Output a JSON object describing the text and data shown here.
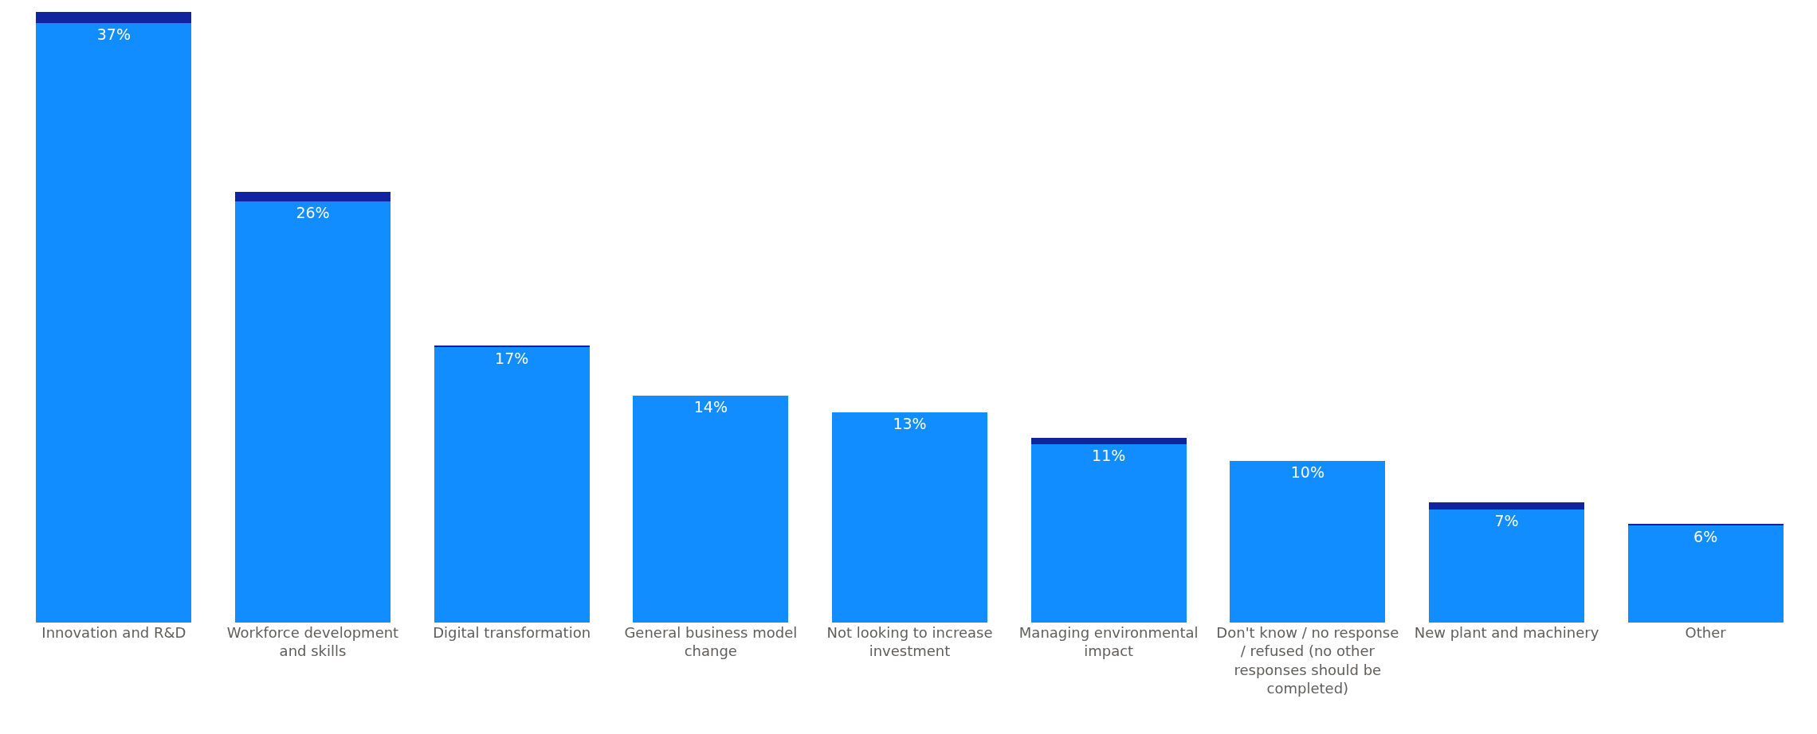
{
  "chart_data": {
    "type": "bar",
    "stacked": true,
    "categories": [
      "Innovation and R&D",
      "Workforce development and skills",
      "Digital transformation",
      "General business model change",
      "Not looking to increase investment",
      "Managing environmental impact",
      "Don't know / no response / refused (no other responses should be completed)",
      "New plant and machinery",
      "Other"
    ],
    "series": [
      {
        "color": "#118dff",
        "values": [
          37,
          26,
          17,
          14,
          13,
          11,
          10,
          7,
          6
        ],
        "value_labels": [
          "37%",
          "26%",
          "17%",
          "14%",
          "13%",
          "11%",
          "10%",
          "7%",
          "6%"
        ]
      },
      {
        "color": "#12239e",
        "values": [
          0.7,
          0.6,
          0.1,
          0,
          0,
          0.4,
          0,
          0.4,
          0.1
        ]
      }
    ],
    "grid": false
  }
}
